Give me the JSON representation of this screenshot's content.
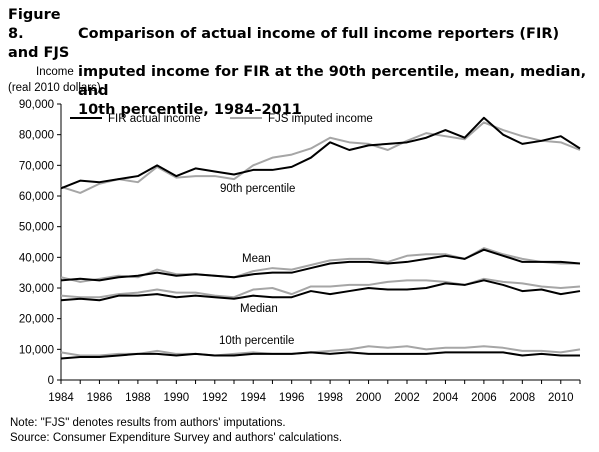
{
  "figure": {
    "number": "Figure 8.",
    "title_line1": "Comparison of actual income of full income reporters (FIR) and FJS",
    "title_line2": "imputed income for FIR at the 90th percentile, mean, median, and",
    "title_line3": "10th percentile, 1984–2011",
    "note": "Note: \"FJS\" denotes results from authors' imputations.",
    "source": "Source: Consumer Expenditure Survey and authors' calculations."
  },
  "chart_data": {
    "type": "line",
    "ylabel_line1": "Income",
    "ylabel_line2": "(real 2010 dollars)",
    "ylim": [
      0,
      90000
    ],
    "yticks": [
      0,
      10000,
      20000,
      30000,
      40000,
      50000,
      60000,
      70000,
      80000,
      90000
    ],
    "ytick_labels": [
      "0",
      "10,000",
      "20,000",
      "30,000",
      "40,000",
      "50,000",
      "60,000",
      "70,000",
      "80,000",
      "90,000"
    ],
    "xlim": [
      1984,
      2011
    ],
    "xticks": [
      1984,
      1986,
      1988,
      1990,
      1992,
      1994,
      1996,
      1998,
      2000,
      2002,
      2004,
      2006,
      2008,
      2010
    ],
    "xtick_labels": [
      "1984",
      "1986",
      "1988",
      "1990",
      "1992",
      "1994",
      "1996",
      "1998",
      "2000",
      "2002",
      "2004",
      "2006",
      "2008",
      "2010"
    ],
    "x": [
      1984,
      1985,
      1986,
      1987,
      1988,
      1989,
      1990,
      1991,
      1992,
      1993,
      1994,
      1995,
      1996,
      1997,
      1998,
      1999,
      2000,
      2001,
      2002,
      2003,
      2004,
      2005,
      2006,
      2007,
      2008,
      2009,
      2010,
      2011
    ],
    "legend": {
      "placement": "top-left",
      "entries": [
        {
          "label": "FIR actual income",
          "color": "#000000"
        },
        {
          "label": "FJS imputed income",
          "color": "#a6a6a6"
        }
      ]
    },
    "groups": [
      {
        "label": "90th percentile",
        "actual": [
          62500,
          65000,
          64500,
          65500,
          66500,
          70000,
          66500,
          69000,
          68000,
          67000,
          68500,
          68500,
          69500,
          72500,
          77500,
          75000,
          76500,
          77000,
          77500,
          79000,
          81500,
          79000,
          85500,
          80000,
          77000,
          78000,
          79500,
          75500
        ],
        "imputed": [
          63000,
          61000,
          64000,
          65500,
          64500,
          69500,
          66000,
          66500,
          66500,
          65500,
          70000,
          72500,
          73500,
          75500,
          79000,
          77500,
          77000,
          75000,
          78000,
          80500,
          79500,
          78500,
          84000,
          81500,
          79500,
          78000,
          77500,
          75000
        ]
      },
      {
        "label": "Mean",
        "actual": [
          32500,
          33000,
          32500,
          33500,
          34000,
          35000,
          34000,
          34500,
          34000,
          33500,
          34500,
          35000,
          35000,
          36500,
          38000,
          38500,
          38500,
          38000,
          38500,
          39500,
          40500,
          39500,
          42500,
          40500,
          38500,
          38500,
          38500,
          38000
        ],
        "imputed": [
          33500,
          32000,
          33000,
          34000,
          33500,
          36000,
          34500,
          34500,
          34000,
          33500,
          35500,
          36500,
          36000,
          37500,
          39000,
          39500,
          39500,
          38500,
          40500,
          41000,
          41000,
          39500,
          43000,
          41000,
          39500,
          38500,
          38000,
          38000
        ]
      },
      {
        "label": "Median",
        "actual": [
          26000,
          26500,
          26000,
          27500,
          27500,
          28000,
          27000,
          27500,
          27000,
          26500,
          27500,
          27000,
          27000,
          29000,
          28000,
          29000,
          30000,
          29500,
          29500,
          30000,
          31500,
          31000,
          32500,
          31000,
          29000,
          29500,
          28000,
          29000
        ],
        "imputed": [
          27500,
          27000,
          27000,
          28000,
          28500,
          29500,
          28500,
          28500,
          27500,
          27000,
          29500,
          30000,
          28000,
          30500,
          30500,
          31000,
          31000,
          32000,
          32500,
          32500,
          32000,
          31000,
          33000,
          32000,
          31500,
          30500,
          30000,
          30500
        ]
      },
      {
        "label": "10th percentile",
        "actual": [
          7000,
          7500,
          7500,
          8000,
          8500,
          8500,
          8000,
          8500,
          8000,
          8000,
          8500,
          8500,
          8500,
          9000,
          8500,
          9000,
          8500,
          8500,
          8500,
          8500,
          9000,
          9000,
          9000,
          9000,
          8000,
          8500,
          8000,
          8000
        ],
        "imputed": [
          9000,
          8000,
          8000,
          8500,
          8500,
          9500,
          8500,
          8500,
          8000,
          8500,
          9000,
          8500,
          8500,
          9000,
          9500,
          10000,
          11000,
          10500,
          11000,
          10000,
          10500,
          10500,
          11000,
          10500,
          9500,
          9500,
          9000,
          10000
        ]
      }
    ],
    "grid": false
  }
}
